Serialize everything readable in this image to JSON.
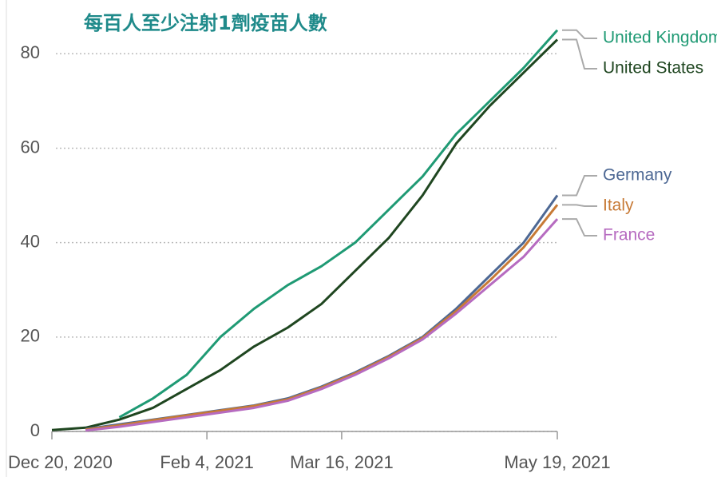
{
  "chart_data": {
    "type": "line",
    "title": "每百人至少注射1劑疫苗人數",
    "x": [
      "2020-12-20",
      "2020-12-30",
      "2021-01-09",
      "2021-01-19",
      "2021-01-29",
      "2021-02-08",
      "2021-02-18",
      "2021-02-28",
      "2021-03-10",
      "2021-03-20",
      "2021-03-30",
      "2021-04-09",
      "2021-04-19",
      "2021-04-29",
      "2021-05-09",
      "2021-05-19"
    ],
    "xlim": [
      "2020-12-20",
      "2021-05-19"
    ],
    "xticks": [
      {
        "value": "2020-12-20",
        "label": "Dec 20, 2020"
      },
      {
        "value": "2021-02-04",
        "label": "Feb 4, 2021"
      },
      {
        "value": "2021-03-16",
        "label": "Mar 16, 2021"
      },
      {
        "value": "2021-05-19",
        "label": "May 19, 2021"
      }
    ],
    "ylim": [
      0,
      88
    ],
    "yticks": [
      0,
      20,
      40,
      60,
      80
    ],
    "grid": true,
    "series": [
      {
        "name": "United Kingdom",
        "color": "#1f9a74",
        "values": [
          null,
          null,
          3,
          7,
          12,
          20,
          26,
          31,
          35,
          40,
          47,
          54,
          63,
          70,
          77,
          85
        ]
      },
      {
        "name": "United States",
        "color": "#1f4620",
        "values": [
          0.3,
          0.8,
          2.5,
          5,
          9,
          13,
          18,
          22,
          27,
          34,
          41,
          50,
          61,
          69,
          76,
          83
        ]
      },
      {
        "name": "Germany",
        "color": "#4d6894",
        "values": [
          null,
          0.5,
          1.5,
          2.5,
          3.5,
          4.5,
          5.5,
          7,
          9.5,
          12.5,
          16,
          20,
          26,
          33,
          40,
          50
        ]
      },
      {
        "name": "Italy",
        "color": "#c77a36",
        "values": [
          null,
          0.4,
          1.3,
          2.4,
          3.4,
          4.4,
          5.4,
          6.8,
          9.3,
          12.3,
          15.8,
          19.8,
          25.5,
          32,
          39,
          48
        ]
      },
      {
        "name": "France",
        "color": "#b66bc0",
        "values": [
          null,
          0.2,
          1,
          2,
          3,
          4,
          5,
          6.5,
          9,
          12,
          15.5,
          19.5,
          25,
          31,
          37,
          45
        ]
      }
    ]
  }
}
